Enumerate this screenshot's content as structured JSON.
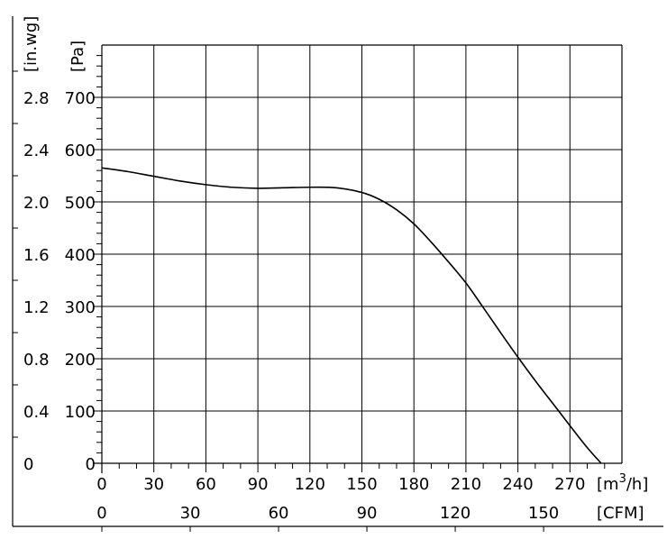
{
  "chart_data": {
    "type": "line",
    "title": "",
    "x_axes": {
      "primary": {
        "unit_label": "[m",
        "unit_sup": "3",
        "unit_suffix": "/h]",
        "ticks": [
          0,
          30,
          60,
          90,
          120,
          150,
          180,
          210,
          240,
          270
        ],
        "range": [
          0,
          300
        ]
      },
      "secondary": {
        "unit_label": "[CFM]",
        "ticks": [
          0,
          30,
          60,
          90,
          120,
          150
        ],
        "range_cfm": [
          0,
          176.6
        ]
      }
    },
    "y_axes": {
      "primary": {
        "unit_label": "[Pa]",
        "ticks": [
          0,
          100,
          200,
          300,
          400,
          500,
          600,
          700
        ],
        "range": [
          0,
          800
        ]
      },
      "secondary": {
        "unit_label": "[in.wg]",
        "ticks": [
          "0",
          "0.4",
          "0.8",
          "1.2",
          "1.6",
          "2.0",
          "2.4",
          "2.8"
        ]
      }
    },
    "grid": true,
    "series": [
      {
        "x": [
          0,
          15,
          30,
          45,
          60,
          75,
          90,
          105,
          120,
          135,
          150,
          160,
          170,
          180,
          190,
          200,
          210,
          220,
          230,
          240,
          250,
          260,
          270,
          280,
          288
        ],
        "y": [
          565,
          558,
          549,
          540,
          533,
          528,
          526,
          527,
          528,
          527,
          518,
          505,
          485,
          458,
          423,
          385,
          345,
          298,
          250,
          203,
          158,
          115,
          72,
          30,
          0
        ]
      }
    ]
  }
}
